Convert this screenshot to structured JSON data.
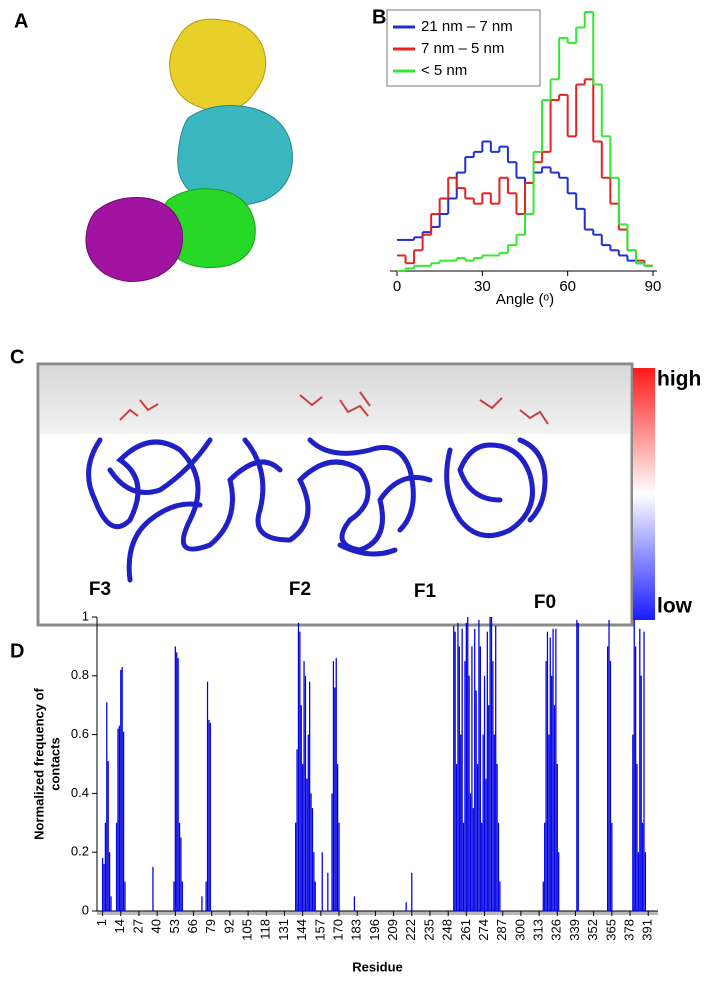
{
  "panel_labels": [
    "A",
    "B",
    "C",
    "D"
  ],
  "panel_c": {
    "domain_labels": [
      "F3",
      "F2",
      "F1",
      "F0"
    ],
    "colorbar": {
      "high": "high",
      "low": "low"
    }
  },
  "chart_data": [
    {
      "type": "histogram",
      "xlabel": "Angle (ᵒ)",
      "bins": [
        0,
        3,
        6,
        9,
        12,
        15,
        18,
        21,
        24,
        27,
        30,
        33,
        36,
        39,
        42,
        45,
        48,
        51,
        54,
        57,
        60,
        63,
        66,
        69,
        72,
        75,
        78,
        81,
        84,
        87,
        90
      ],
      "xlim": [
        0,
        90
      ],
      "xticks": [
        0,
        30,
        60,
        90
      ],
      "ylim": [
        0,
        100
      ],
      "legend": "upper left",
      "series": [
        {
          "name": "21 nm – 7 nm",
          "color": "#1f2fd0",
          "values": [
            12,
            12,
            13,
            15,
            17,
            22,
            28,
            38,
            44,
            46,
            50,
            46,
            48,
            42,
            36,
            34,
            38,
            40,
            38,
            36,
            30,
            24,
            16,
            14,
            10,
            8,
            6,
            4,
            3,
            2
          ]
        },
        {
          "name": " 7 nm – 5 nm",
          "color": "#e02424",
          "values": [
            6,
            3,
            8,
            14,
            22,
            28,
            36,
            32,
            28,
            26,
            30,
            26,
            36,
            30,
            22,
            34,
            42,
            46,
            66,
            68,
            52,
            72,
            74,
            50,
            36,
            26,
            16,
            8,
            4,
            2
          ]
        },
        {
          "name": "<  5 nm",
          "color": "#33e833",
          "values": [
            0,
            1,
            2,
            2,
            3,
            4,
            4,
            5,
            4,
            5,
            6,
            6,
            7,
            10,
            14,
            22,
            46,
            66,
            74,
            90,
            88,
            94,
            100,
            72,
            52,
            36,
            18,
            8,
            3,
            2
          ]
        }
      ]
    },
    {
      "type": "bar",
      "xlabel": "Residue",
      "ylabel": [
        "Normalized frequency of",
        "contacts"
      ],
      "color": "#0000e0",
      "xlim": [
        -3,
        398
      ],
      "xticks": [
        1,
        14,
        27,
        40,
        53,
        66,
        79,
        92,
        105,
        118,
        131,
        144,
        157,
        170,
        183,
        196,
        209,
        222,
        235,
        248,
        261,
        274,
        287,
        300,
        313,
        326,
        339,
        352,
        365,
        378,
        391
      ],
      "ylim": [
        0,
        1
      ],
      "yticks": [
        0,
        0.2,
        0.4,
        0.6,
        0.8,
        1
      ],
      "x": [
        1,
        2,
        3,
        4,
        5,
        6,
        7,
        11,
        12,
        13,
        14,
        15,
        16,
        17,
        37,
        52,
        53,
        54,
        55,
        56,
        57,
        58,
        72,
        75,
        76,
        77,
        78,
        139,
        140,
        141,
        142,
        143,
        144,
        145,
        146,
        147,
        148,
        149,
        150,
        151,
        152,
        153,
        158,
        162,
        165,
        166,
        167,
        168,
        169,
        170,
        181,
        218,
        222,
        252,
        253,
        254,
        255,
        256,
        257,
        258,
        259,
        260,
        261,
        262,
        263,
        264,
        265,
        266,
        267,
        268,
        269,
        270,
        271,
        272,
        273,
        274,
        275,
        276,
        277,
        278,
        279,
        280,
        281,
        282,
        283,
        284,
        285,
        316,
        317,
        318,
        319,
        320,
        321,
        322,
        323,
        324,
        325,
        326,
        327,
        340,
        341,
        362,
        363,
        364,
        365,
        380,
        381,
        382,
        383,
        384,
        385,
        386,
        387,
        388,
        389
      ],
      "values": [
        0.18,
        0.16,
        0.3,
        0.71,
        0.51,
        0.2,
        0.05,
        0.3,
        0.62,
        0.63,
        0.82,
        0.83,
        0.61,
        0.1,
        0.15,
        0.1,
        0.9,
        0.88,
        0.86,
        0.3,
        0.25,
        0.1,
        0.05,
        0.1,
        0.78,
        0.65,
        0.64,
        0.3,
        0.55,
        0.98,
        0.95,
        0.7,
        0.5,
        0.85,
        0.8,
        0.45,
        0.6,
        0.78,
        0.4,
        0.35,
        0.2,
        0.1,
        0.2,
        0.13,
        0.4,
        0.85,
        0.76,
        0.86,
        0.5,
        0.3,
        0.05,
        0.03,
        0.13,
        0.97,
        0.95,
        0.5,
        0.98,
        0.9,
        0.6,
        0.96,
        0.3,
        0.85,
        0.98,
        1,
        0.8,
        0.4,
        0.9,
        0.35,
        0.96,
        0.75,
        0.5,
        0.99,
        0.9,
        0.3,
        0.6,
        0.8,
        0.45,
        0.95,
        0.7,
        1,
        1,
        0.85,
        0.6,
        0.97,
        0.5,
        0.3,
        0.1,
        0.1,
        0.3,
        0.85,
        0.95,
        0.6,
        0.93,
        0.8,
        0.96,
        0.7,
        0.96,
        0.5,
        0.2,
        0.99,
        0.98,
        0.9,
        0.99,
        0.85,
        0.3,
        0.6,
        0.99,
        0.9,
        0.5,
        0.2,
        0.96,
        0.8,
        0.3,
        0.95,
        0.2
      ]
    }
  ]
}
